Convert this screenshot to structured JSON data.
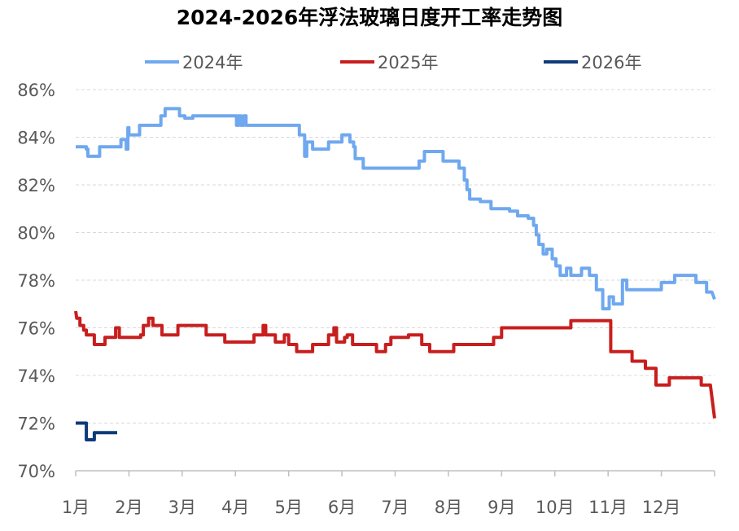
{
  "chart_data": {
    "type": "line",
    "title": "2024-2026年浮法玻璃日度开工率走势图",
    "xlabel": "",
    "ylabel": "",
    "ylim": [
      70,
      86
    ],
    "y_ticks": [
      70,
      72,
      74,
      76,
      78,
      80,
      82,
      84,
      86
    ],
    "y_tick_suffix": "%",
    "categories": [
      "1月",
      "2月",
      "3月",
      "4月",
      "5月",
      "6月",
      "7月",
      "8月",
      "9月",
      "10月",
      "11月",
      "12月"
    ],
    "x_domain": [
      1,
      13
    ],
    "grid": true,
    "legend_position": "top",
    "series": [
      {
        "name": "2024年",
        "color": "#6fa8ef",
        "points": [
          [
            1.0,
            83.6
          ],
          [
            1.2,
            83.6
          ],
          [
            1.2,
            83.5
          ],
          [
            1.23,
            83.5
          ],
          [
            1.23,
            83.2
          ],
          [
            1.45,
            83.2
          ],
          [
            1.45,
            83.6
          ],
          [
            1.85,
            83.6
          ],
          [
            1.85,
            83.9
          ],
          [
            1.95,
            83.9
          ],
          [
            1.95,
            83.5
          ],
          [
            1.98,
            83.5
          ],
          [
            1.98,
            84.4
          ],
          [
            2.0,
            84.4
          ],
          [
            2.0,
            84.1
          ],
          [
            2.2,
            84.1
          ],
          [
            2.2,
            84.5
          ],
          [
            2.6,
            84.5
          ],
          [
            2.6,
            84.9
          ],
          [
            2.68,
            84.9
          ],
          [
            2.68,
            85.2
          ],
          [
            2.95,
            85.2
          ],
          [
            2.95,
            84.9
          ],
          [
            3.05,
            84.9
          ],
          [
            3.05,
            84.8
          ],
          [
            3.2,
            84.8
          ],
          [
            3.2,
            84.9
          ],
          [
            4.02,
            84.9
          ],
          [
            4.02,
            84.5
          ],
          [
            4.06,
            84.5
          ],
          [
            4.06,
            84.9
          ],
          [
            4.1,
            84.9
          ],
          [
            4.1,
            84.5
          ],
          [
            4.15,
            84.5
          ],
          [
            4.15,
            84.9
          ],
          [
            4.2,
            84.9
          ],
          [
            4.2,
            84.5
          ],
          [
            5.2,
            84.5
          ],
          [
            5.2,
            84.1
          ],
          [
            5.3,
            84.1
          ],
          [
            5.3,
            83.2
          ],
          [
            5.34,
            83.2
          ],
          [
            5.34,
            83.8
          ],
          [
            5.45,
            83.8
          ],
          [
            5.45,
            83.5
          ],
          [
            5.75,
            83.5
          ],
          [
            5.75,
            83.8
          ],
          [
            6.0,
            83.8
          ],
          [
            6.0,
            84.1
          ],
          [
            6.15,
            84.1
          ],
          [
            6.15,
            83.8
          ],
          [
            6.22,
            83.8
          ],
          [
            6.22,
            83.6
          ],
          [
            6.25,
            83.6
          ],
          [
            6.25,
            83.1
          ],
          [
            6.4,
            83.1
          ],
          [
            6.4,
            82.7
          ],
          [
            7.45,
            82.7
          ],
          [
            7.45,
            83.0
          ],
          [
            7.55,
            83.0
          ],
          [
            7.55,
            83.4
          ],
          [
            7.9,
            83.4
          ],
          [
            7.9,
            83.0
          ],
          [
            8.2,
            83.0
          ],
          [
            8.2,
            82.7
          ],
          [
            8.3,
            82.7
          ],
          [
            8.3,
            82.2
          ],
          [
            8.35,
            82.2
          ],
          [
            8.35,
            81.8
          ],
          [
            8.4,
            81.8
          ],
          [
            8.4,
            81.4
          ],
          [
            8.6,
            81.4
          ],
          [
            8.6,
            81.3
          ],
          [
            8.8,
            81.3
          ],
          [
            8.8,
            81.0
          ],
          [
            9.0,
            81.0
          ],
          [
            9.0,
            81.0
          ],
          [
            9.15,
            81.0
          ],
          [
            9.15,
            80.9
          ],
          [
            9.3,
            80.9
          ],
          [
            9.3,
            80.7
          ],
          [
            9.5,
            80.7
          ],
          [
            9.5,
            80.6
          ],
          [
            9.6,
            80.6
          ],
          [
            9.6,
            80.3
          ],
          [
            9.65,
            80.3
          ],
          [
            9.65,
            79.9
          ],
          [
            9.7,
            79.9
          ],
          [
            9.7,
            79.5
          ],
          [
            9.78,
            79.5
          ],
          [
            9.78,
            79.1
          ],
          [
            9.85,
            79.1
          ],
          [
            9.85,
            79.3
          ],
          [
            9.95,
            79.3
          ],
          [
            9.95,
            78.9
          ],
          [
            10.02,
            78.9
          ],
          [
            10.02,
            78.6
          ],
          [
            10.1,
            78.6
          ],
          [
            10.1,
            78.2
          ],
          [
            10.22,
            78.2
          ],
          [
            10.22,
            78.5
          ],
          [
            10.3,
            78.5
          ],
          [
            10.3,
            78.2
          ],
          [
            10.5,
            78.2
          ],
          [
            10.5,
            78.5
          ],
          [
            10.65,
            78.5
          ],
          [
            10.65,
            78.2
          ],
          [
            10.78,
            78.2
          ],
          [
            10.78,
            77.6
          ],
          [
            10.9,
            77.6
          ],
          [
            10.9,
            76.8
          ],
          [
            11.02,
            76.8
          ],
          [
            11.02,
            77.3
          ],
          [
            11.1,
            77.3
          ],
          [
            11.1,
            77.0
          ],
          [
            11.27,
            77.0
          ],
          [
            11.27,
            78.0
          ],
          [
            11.35,
            78.0
          ],
          [
            11.35,
            77.6
          ],
          [
            12.0,
            77.6
          ],
          [
            12.0,
            77.9
          ],
          [
            12.25,
            77.9
          ],
          [
            12.25,
            78.2
          ],
          [
            12.65,
            78.2
          ],
          [
            12.65,
            77.9
          ],
          [
            12.85,
            77.9
          ],
          [
            12.85,
            77.5
          ],
          [
            12.95,
            77.5
          ],
          [
            13.0,
            77.2
          ]
        ]
      },
      {
        "name": "2025年",
        "color": "#c81e1e",
        "points": [
          [
            1.0,
            76.7
          ],
          [
            1.02,
            76.4
          ],
          [
            1.08,
            76.4
          ],
          [
            1.08,
            76.1
          ],
          [
            1.15,
            76.1
          ],
          [
            1.15,
            75.9
          ],
          [
            1.2,
            75.9
          ],
          [
            1.2,
            75.7
          ],
          [
            1.35,
            75.7
          ],
          [
            1.35,
            75.3
          ],
          [
            1.55,
            75.3
          ],
          [
            1.55,
            75.6
          ],
          [
            1.75,
            75.6
          ],
          [
            1.75,
            76.0
          ],
          [
            1.82,
            76.0
          ],
          [
            1.82,
            75.6
          ],
          [
            2.22,
            75.6
          ],
          [
            2.22,
            75.7
          ],
          [
            2.27,
            75.7
          ],
          [
            2.27,
            76.1
          ],
          [
            2.37,
            76.1
          ],
          [
            2.37,
            76.4
          ],
          [
            2.45,
            76.4
          ],
          [
            2.45,
            76.1
          ],
          [
            2.62,
            76.1
          ],
          [
            2.62,
            75.7
          ],
          [
            2.92,
            75.7
          ],
          [
            2.92,
            76.1
          ],
          [
            3.45,
            76.1
          ],
          [
            3.45,
            75.7
          ],
          [
            3.8,
            75.7
          ],
          [
            3.8,
            75.4
          ],
          [
            4.35,
            75.4
          ],
          [
            4.35,
            75.7
          ],
          [
            4.52,
            75.7
          ],
          [
            4.52,
            76.1
          ],
          [
            4.57,
            76.1
          ],
          [
            4.57,
            75.7
          ],
          [
            4.75,
            75.7
          ],
          [
            4.75,
            75.4
          ],
          [
            4.92,
            75.4
          ],
          [
            4.92,
            75.7
          ],
          [
            5.0,
            75.7
          ],
          [
            5.0,
            75.3
          ],
          [
            5.15,
            75.3
          ],
          [
            5.15,
            75.0
          ],
          [
            5.45,
            75.0
          ],
          [
            5.45,
            75.3
          ],
          [
            5.75,
            75.3
          ],
          [
            5.75,
            75.7
          ],
          [
            5.85,
            75.7
          ],
          [
            5.85,
            76.0
          ],
          [
            5.9,
            76.0
          ],
          [
            5.9,
            75.4
          ],
          [
            6.05,
            75.4
          ],
          [
            6.05,
            75.6
          ],
          [
            6.1,
            75.6
          ],
          [
            6.1,
            75.7
          ],
          [
            6.2,
            75.7
          ],
          [
            6.2,
            75.3
          ],
          [
            6.65,
            75.3
          ],
          [
            6.65,
            75.0
          ],
          [
            6.82,
            75.0
          ],
          [
            6.82,
            75.3
          ],
          [
            6.92,
            75.3
          ],
          [
            6.92,
            75.6
          ],
          [
            7.25,
            75.6
          ],
          [
            7.25,
            75.7
          ],
          [
            7.5,
            75.7
          ],
          [
            7.5,
            75.3
          ],
          [
            7.65,
            75.3
          ],
          [
            7.65,
            75.0
          ],
          [
            8.1,
            75.0
          ],
          [
            8.1,
            75.3
          ],
          [
            8.85,
            75.3
          ],
          [
            8.85,
            75.6
          ],
          [
            9.0,
            75.6
          ],
          [
            9.0,
            76.0
          ],
          [
            10.3,
            76.0
          ],
          [
            10.3,
            76.3
          ],
          [
            11.05,
            76.3
          ],
          [
            11.05,
            75.0
          ],
          [
            11.45,
            75.0
          ],
          [
            11.45,
            74.6
          ],
          [
            11.7,
            74.6
          ],
          [
            11.7,
            74.3
          ],
          [
            11.9,
            74.3
          ],
          [
            11.9,
            73.6
          ],
          [
            12.15,
            73.6
          ],
          [
            12.15,
            73.9
          ],
          [
            12.75,
            73.9
          ],
          [
            12.75,
            73.6
          ],
          [
            12.92,
            73.6
          ],
          [
            13.0,
            72.2
          ]
        ]
      },
      {
        "name": "2026年",
        "color": "#0d3a7a",
        "points": [
          [
            1.0,
            72.0
          ],
          [
            1.2,
            72.0
          ],
          [
            1.2,
            71.3
          ],
          [
            1.35,
            71.3
          ],
          [
            1.35,
            71.6
          ],
          [
            1.78,
            71.6
          ]
        ]
      }
    ]
  }
}
